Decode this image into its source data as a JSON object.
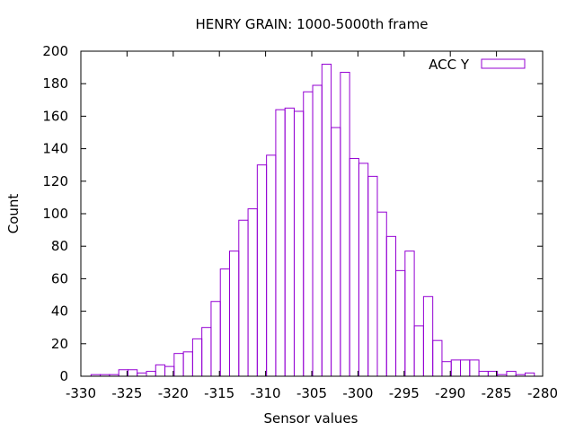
{
  "chart_data": {
    "type": "bar",
    "title": "HENRY GRAIN: 1000-5000th frame",
    "xlabel": "Sensor values",
    "ylabel": "Count",
    "xlim": [
      -330,
      -280
    ],
    "ylim": [
      0,
      200
    ],
    "xticks": [
      -330,
      -325,
      -320,
      -315,
      -310,
      -305,
      -300,
      -295,
      -290,
      -285,
      -280
    ],
    "yticks": [
      0,
      20,
      40,
      60,
      80,
      100,
      120,
      140,
      160,
      180,
      200
    ],
    "grid": false,
    "legend_position": "top-right",
    "series": [
      {
        "name": "ACC Y",
        "color": "#9400d3",
        "bin_width": 1,
        "bin_starts": [
          -328.9,
          -327.9,
          -326.9,
          -325.9,
          -324.9,
          -323.9,
          -322.9,
          -321.9,
          -320.9,
          -319.9,
          -318.9,
          -317.9,
          -316.9,
          -315.9,
          -314.9,
          -313.9,
          -312.9,
          -311.9,
          -310.9,
          -309.9,
          -308.9,
          -307.9,
          -306.9,
          -305.9,
          -304.9,
          -303.9,
          -302.9,
          -301.9,
          -300.9,
          -299.9,
          -298.9,
          -297.9,
          -296.9,
          -295.9,
          -294.9,
          -293.9,
          -292.9,
          -291.9,
          -290.9,
          -289.9,
          -288.9,
          -287.9,
          -286.9,
          -285.9,
          -284.9,
          -283.9,
          -282.9,
          -281.9
        ],
        "values": [
          1,
          1,
          1,
          4,
          4,
          2,
          3,
          7,
          6,
          14,
          15,
          23,
          30,
          46,
          66,
          77,
          96,
          103,
          130,
          136,
          164,
          165,
          163,
          175,
          179,
          192,
          153,
          187,
          134,
          131,
          123,
          101,
          86,
          65,
          77,
          31,
          49,
          22,
          9,
          10,
          10,
          10,
          3,
          3,
          1,
          3,
          1,
          2
        ]
      }
    ]
  }
}
